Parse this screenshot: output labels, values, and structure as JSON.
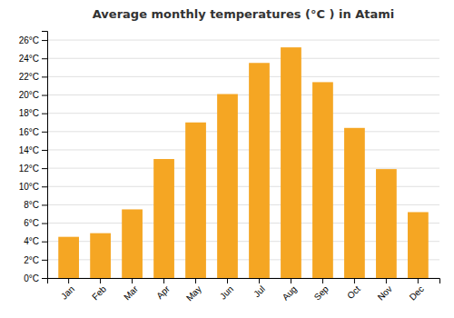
{
  "chart_data": {
    "type": "bar",
    "title": "Average monthly temperatures (°C ) in Atami",
    "categories": [
      "Jan",
      "Feb",
      "Mar",
      "Apr",
      "May",
      "Jun",
      "Jul",
      "Aug",
      "Sep",
      "Oct",
      "Nov",
      "Dec"
    ],
    "values": [
      4.5,
      4.9,
      7.5,
      13.0,
      17.0,
      20.1,
      23.5,
      25.2,
      21.4,
      16.4,
      11.9,
      7.2
    ],
    "color": "#F5A623",
    "ylim": [
      0,
      27
    ],
    "yticks": [
      {
        "value": 0,
        "label": "0°C"
      },
      {
        "value": 2,
        "label": "2°C"
      },
      {
        "value": 4,
        "label": "4°C"
      },
      {
        "value": 6,
        "label": "6°C"
      },
      {
        "value": 8,
        "label": "8°C"
      },
      {
        "value": 10,
        "label": "10°C"
      },
      {
        "value": 12,
        "label": "12°C"
      },
      {
        "value": 14,
        "label": "14°C"
      },
      {
        "value": 16,
        "label": "16°C"
      },
      {
        "value": 18,
        "label": "18°C"
      },
      {
        "value": 20,
        "label": "20°C"
      },
      {
        "value": 22,
        "label": "22°C"
      },
      {
        "value": 24,
        "label": "24°C"
      },
      {
        "value": 26,
        "label": "26°C"
      }
    ],
    "grid": true
  }
}
